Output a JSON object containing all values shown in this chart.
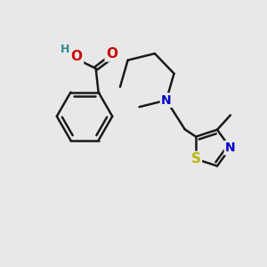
{
  "background_color": "#e8e8e8",
  "bond_color": "#1a1a1a",
  "bond_lw": 1.8,
  "atom_colors": {
    "O": "#cc0000",
    "N": "#0000cc",
    "S": "#b8b800",
    "H": "#2e8b8b",
    "C": "#1a1a1a"
  },
  "font_size": 10,
  "figsize": [
    3.0,
    3.0
  ],
  "dpi": 100
}
